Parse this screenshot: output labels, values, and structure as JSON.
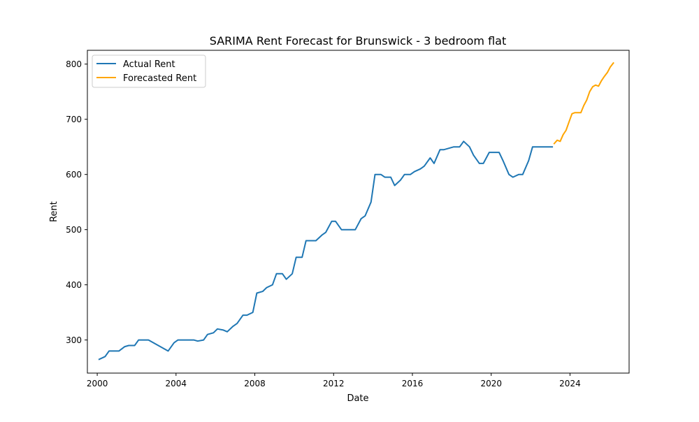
{
  "chart_data": {
    "type": "line",
    "title": "SARIMA Rent Forecast for Brunswick - 3 bedroom flat",
    "xlabel": "Date",
    "ylabel": "Rent",
    "xlim": [
      1999.5,
      2027.0
    ],
    "ylim": [
      240,
      825
    ],
    "x_ticks": [
      2000,
      2004,
      2008,
      2012,
      2016,
      2020,
      2024
    ],
    "x_tick_labels": [
      "2000",
      "2004",
      "2008",
      "2012",
      "2016",
      "2020",
      "2024"
    ],
    "y_ticks": [
      300,
      400,
      500,
      600,
      700,
      800
    ],
    "y_tick_labels": [
      "300",
      "400",
      "500",
      "600",
      "700",
      "800"
    ],
    "grid": false,
    "legend_position": "top-left",
    "series": [
      {
        "name": "Actual Rent",
        "color": "#1f77b4",
        "x": [
          2000.1,
          2000.4,
          2000.6,
          2000.9,
          2001.1,
          2001.4,
          2001.6,
          2001.9,
          2002.1,
          2002.4,
          2002.6,
          2003.6,
          2003.9,
          2004.1,
          2004.4,
          2004.6,
          2004.9,
          2005.1,
          2005.4,
          2005.6,
          2005.9,
          2006.1,
          2006.4,
          2006.6,
          2006.9,
          2007.1,
          2007.4,
          2007.6,
          2007.9,
          2008.1,
          2008.4,
          2008.6,
          2008.9,
          2009.1,
          2009.4,
          2009.6,
          2009.9,
          2010.1,
          2010.4,
          2010.6,
          2010.9,
          2011.1,
          2011.4,
          2011.6,
          2011.9,
          2012.1,
          2012.4,
          2012.6,
          2013.1,
          2013.4,
          2013.6,
          2013.9,
          2014.1,
          2014.4,
          2014.6,
          2014.9,
          2015.1,
          2015.4,
          2015.6,
          2015.9,
          2016.1,
          2016.4,
          2016.6,
          2016.9,
          2017.1,
          2017.4,
          2017.6,
          2017.9,
          2018.1,
          2018.4,
          2018.6,
          2018.9,
          2019.1,
          2019.4,
          2019.6,
          2019.9,
          2020.1,
          2020.4,
          2020.6,
          2020.9,
          2021.1,
          2021.4,
          2021.6,
          2021.9,
          2022.1,
          2022.4,
          2022.6,
          2022.9,
          2023.1
        ],
        "values": [
          265,
          270,
          280,
          280,
          280,
          288,
          290,
          290,
          300,
          300,
          300,
          280,
          295,
          300,
          300,
          300,
          300,
          298,
          300,
          310,
          313,
          320,
          318,
          315,
          325,
          330,
          345,
          345,
          350,
          385,
          388,
          395,
          400,
          420,
          420,
          410,
          420,
          450,
          450,
          480,
          480,
          480,
          490,
          495,
          515,
          515,
          500,
          500,
          500,
          520,
          525,
          550,
          600,
          600,
          595,
          595,
          580,
          590,
          600,
          600,
          605,
          610,
          615,
          630,
          620,
          645,
          645,
          648,
          650,
          650,
          660,
          650,
          635,
          620,
          620,
          640,
          640,
          640,
          625,
          600,
          595,
          600,
          600,
          625,
          650,
          650,
          650,
          650,
          650
        ]
      },
      {
        "name": "Forecasted Rent",
        "color": "#ffa500",
        "x": [
          2023.2,
          2023.35,
          2023.5,
          2023.65,
          2023.8,
          2023.95,
          2024.1,
          2024.25,
          2024.4,
          2024.55,
          2024.7,
          2024.85,
          2025.0,
          2025.15,
          2025.3,
          2025.45,
          2025.6,
          2025.75,
          2025.9,
          2026.05,
          2026.2
        ],
        "values": [
          656,
          662,
          660,
          672,
          680,
          695,
          710,
          712,
          712,
          712,
          725,
          735,
          750,
          759,
          762,
          760,
          770,
          778,
          785,
          795,
          802
        ]
      }
    ]
  }
}
